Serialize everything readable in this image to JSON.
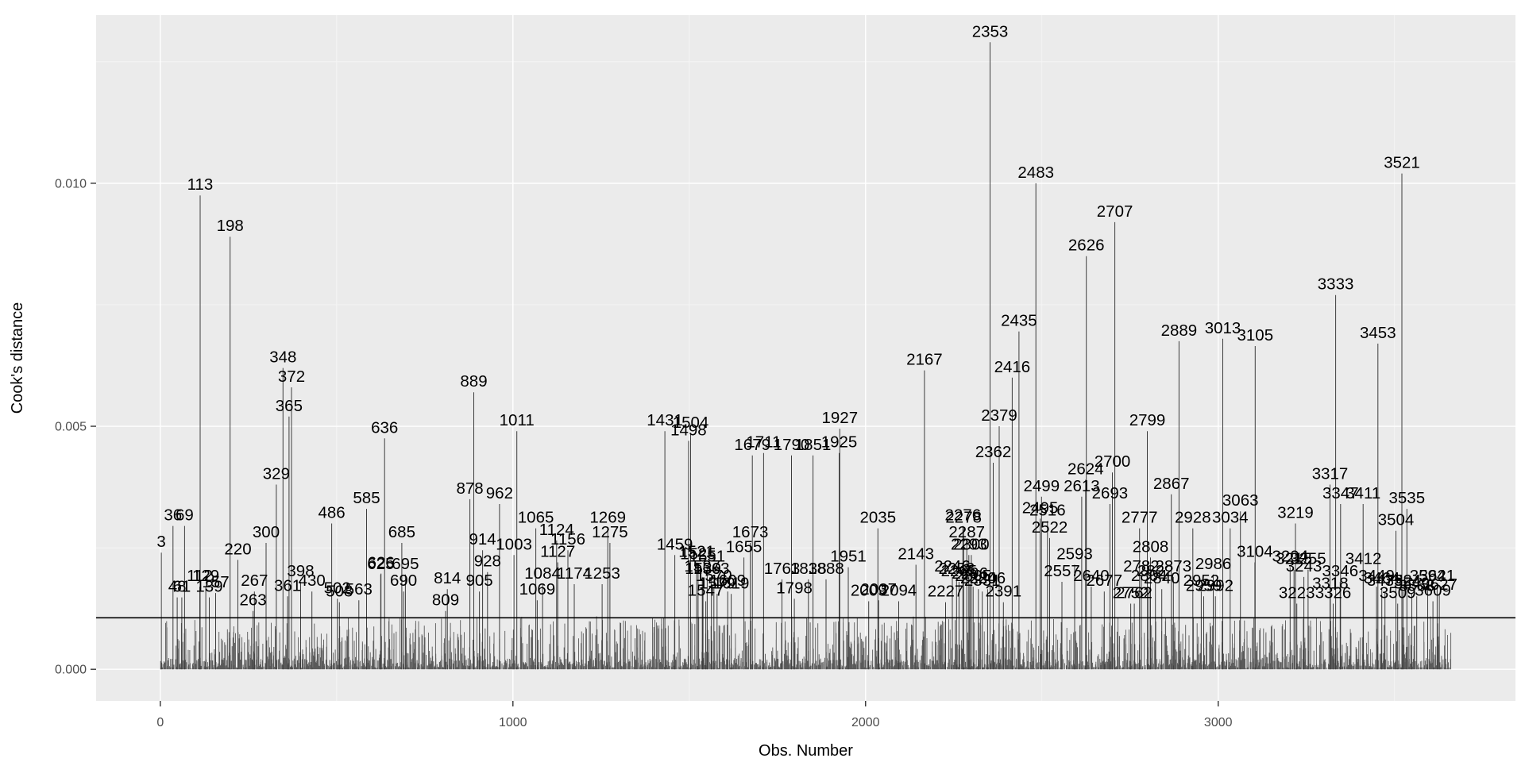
{
  "chart_data": {
    "type": "bar",
    "variant": "cooks-distance-lollipop",
    "title": "",
    "xlabel": "Obs. Number",
    "ylabel": "Cook's distance",
    "xlim": [
      -182,
      3843
    ],
    "ylim": [
      -0.00065,
      0.01346
    ],
    "x_major_ticks": [
      0,
      1000,
      2000,
      3000
    ],
    "x_major_labels": [
      "0",
      "1000",
      "2000",
      "3000"
    ],
    "x_minor_ticks": [
      500,
      1500,
      2500,
      3500
    ],
    "y_major_ticks": [
      0.0,
      0.005,
      0.01
    ],
    "y_major_labels": [
      "0.000",
      "0.005",
      "0.010"
    ],
    "y_minor_ticks": [
      0.0025,
      0.0075,
      0.0125
    ],
    "grid": true,
    "legend_position": "none",
    "threshold_line": 0.00106,
    "colors": {
      "panel_background": "#EBEBEB",
      "grid_major": "#FFFFFF",
      "grid_minor": "#F5F5F5",
      "spike": "#3d3d3d",
      "noise_spike": "#4a4a4a",
      "threshold": "#000000",
      "label_text": "#000000",
      "tick_text": "#4D4D4D",
      "axis_title": "#000000"
    },
    "background_noise": {
      "count": 2300,
      "dense_base_step": 2.6,
      "max_value": 0.00105,
      "seed": 20
    },
    "labeled_points": [
      [
        3,
        0.0024
      ],
      [
        36,
        0.00295
      ],
      [
        48,
        0.00148
      ],
      [
        61,
        0.00148
      ],
      [
        69,
        0.00295
      ],
      [
        112,
        0.0017
      ],
      [
        113,
        0.00975
      ],
      [
        129,
        0.0017
      ],
      [
        139,
        0.00148
      ],
      [
        157,
        0.00157
      ],
      [
        198,
        0.0089
      ],
      [
        220,
        0.00225
      ],
      [
        263,
        0.0012
      ],
      [
        267,
        0.0016
      ],
      [
        300,
        0.0026
      ],
      [
        329,
        0.0038
      ],
      [
        348,
        0.0062
      ],
      [
        361,
        0.0015
      ],
      [
        365,
        0.0052
      ],
      [
        372,
        0.0058
      ],
      [
        398,
        0.0018
      ],
      [
        430,
        0.0016
      ],
      [
        486,
        0.003
      ],
      [
        502,
        0.00145
      ],
      [
        508,
        0.00138
      ],
      [
        563,
        0.00142
      ],
      [
        585,
        0.0033
      ],
      [
        625,
        0.00195
      ],
      [
        626,
        0.00197
      ],
      [
        636,
        0.00475
      ],
      [
        685,
        0.0026
      ],
      [
        690,
        0.0016
      ],
      [
        695,
        0.00195
      ],
      [
        809,
        0.0012
      ],
      [
        814,
        0.00165
      ],
      [
        878,
        0.0035
      ],
      [
        889,
        0.0057
      ],
      [
        905,
        0.0016
      ],
      [
        914,
        0.00245
      ],
      [
        928,
        0.002
      ],
      [
        962,
        0.0034
      ],
      [
        1003,
        0.00235
      ],
      [
        1011,
        0.0049
      ],
      [
        1065,
        0.0029
      ],
      [
        1069,
        0.00142
      ],
      [
        1084,
        0.00175
      ],
      [
        1124,
        0.00265
      ],
      [
        1127,
        0.0022
      ],
      [
        1156,
        0.00245
      ],
      [
        1174,
        0.00175
      ],
      [
        1253,
        0.00175
      ],
      [
        1269,
        0.0029
      ],
      [
        1275,
        0.0026
      ],
      [
        1431,
        0.0049
      ],
      [
        1459,
        0.00235
      ],
      [
        1498,
        0.0047
      ],
      [
        1504,
        0.00485
      ],
      [
        1521,
        0.0022
      ],
      [
        1525,
        0.00215
      ],
      [
        1537,
        0.0019
      ],
      [
        1539,
        0.00185
      ],
      [
        1547,
        0.0014
      ],
      [
        1551,
        0.0021
      ],
      [
        1563,
        0.00185
      ],
      [
        1570,
        0.0017
      ],
      [
        1579,
        0.00155
      ],
      [
        1609,
        0.0016
      ],
      [
        1619,
        0.00155
      ],
      [
        1655,
        0.0023
      ],
      [
        1673,
        0.0026
      ],
      [
        1679,
        0.0044
      ],
      [
        1711,
        0.00445
      ],
      [
        1763,
        0.00185
      ],
      [
        1790,
        0.0044
      ],
      [
        1798,
        0.00145
      ],
      [
        1838,
        0.00185
      ],
      [
        1851,
        0.0044
      ],
      [
        1888,
        0.00185
      ],
      [
        1925,
        0.00445
      ],
      [
        1927,
        0.00495
      ],
      [
        1951,
        0.0021
      ],
      [
        2009,
        0.0014
      ],
      [
        2035,
        0.0029
      ],
      [
        2037,
        0.00142
      ],
      [
        2094,
        0.0014
      ],
      [
        2143,
        0.00215
      ],
      [
        2167,
        0.00615
      ],
      [
        2227,
        0.00138
      ],
      [
        2246,
        0.0019
      ],
      [
        2258,
        0.00185
      ],
      [
        2265,
        0.0018
      ],
      [
        2276,
        0.00295
      ],
      [
        2278,
        0.0029
      ],
      [
        2287,
        0.0026
      ],
      [
        2293,
        0.00235
      ],
      [
        2296,
        0.00175
      ],
      [
        2300,
        0.00235
      ],
      [
        2305,
        0.0017
      ],
      [
        2320,
        0.00165
      ],
      [
        2331,
        0.0016
      ],
      [
        2346,
        0.00165
      ],
      [
        2353,
        0.0129
      ],
      [
        2362,
        0.00425
      ],
      [
        2379,
        0.005
      ],
      [
        2391,
        0.00138
      ],
      [
        2416,
        0.006
      ],
      [
        2435,
        0.00695
      ],
      [
        2483,
        0.01
      ],
      [
        2495,
        0.0031
      ],
      [
        2499,
        0.00355
      ],
      [
        2516,
        0.00305
      ],
      [
        2522,
        0.0027
      ],
      [
        2557,
        0.0018
      ],
      [
        2593,
        0.00215
      ],
      [
        2613,
        0.00355
      ],
      [
        2624,
        0.0039
      ],
      [
        2626,
        0.0085
      ],
      [
        2640,
        0.0017
      ],
      [
        2677,
        0.0016
      ],
      [
        2693,
        0.0034
      ],
      [
        2700,
        0.00405
      ],
      [
        2707,
        0.0092
      ],
      [
        2752,
        0.00135
      ],
      [
        2762,
        0.00135
      ],
      [
        2777,
        0.0029
      ],
      [
        2782,
        0.0019
      ],
      [
        2799,
        0.0049
      ],
      [
        2804,
        0.0017
      ],
      [
        2808,
        0.0023
      ],
      [
        2822,
        0.0018
      ],
      [
        2840,
        0.00165
      ],
      [
        2867,
        0.0036
      ],
      [
        2873,
        0.0019
      ],
      [
        2889,
        0.00675
      ],
      [
        2928,
        0.0029
      ],
      [
        2952,
        0.0016
      ],
      [
        2959,
        0.0015
      ],
      [
        2986,
        0.00195
      ],
      [
        2992,
        0.0015
      ],
      [
        3013,
        0.0068
      ],
      [
        3034,
        0.0029
      ],
      [
        3063,
        0.00325
      ],
      [
        3104,
        0.0022
      ],
      [
        3105,
        0.00665
      ],
      [
        3204,
        0.0021
      ],
      [
        3215,
        0.00205
      ],
      [
        3219,
        0.003
      ],
      [
        3223,
        0.00135
      ],
      [
        3243,
        0.0019
      ],
      [
        3255,
        0.00205
      ],
      [
        3317,
        0.0038
      ],
      [
        3318,
        0.00155
      ],
      [
        3326,
        0.00135
      ],
      [
        3333,
        0.0077
      ],
      [
        3346,
        0.0018
      ],
      [
        3347,
        0.0034
      ],
      [
        3411,
        0.0034
      ],
      [
        3412,
        0.00205
      ],
      [
        3449,
        0.0017
      ],
      [
        3453,
        0.0067
      ],
      [
        3464,
        0.00165
      ],
      [
        3473,
        0.0016
      ],
      [
        3504,
        0.00285
      ],
      [
        3509,
        0.00135
      ],
      [
        3521,
        0.0102
      ],
      [
        3524,
        0.0016
      ],
      [
        3535,
        0.0033
      ],
      [
        3549,
        0.00155
      ],
      [
        3563,
        0.0015
      ],
      [
        3594,
        0.0017
      ],
      [
        3609,
        0.0014
      ],
      [
        3621,
        0.0017
      ],
      [
        3627,
        0.00152
      ]
    ]
  }
}
